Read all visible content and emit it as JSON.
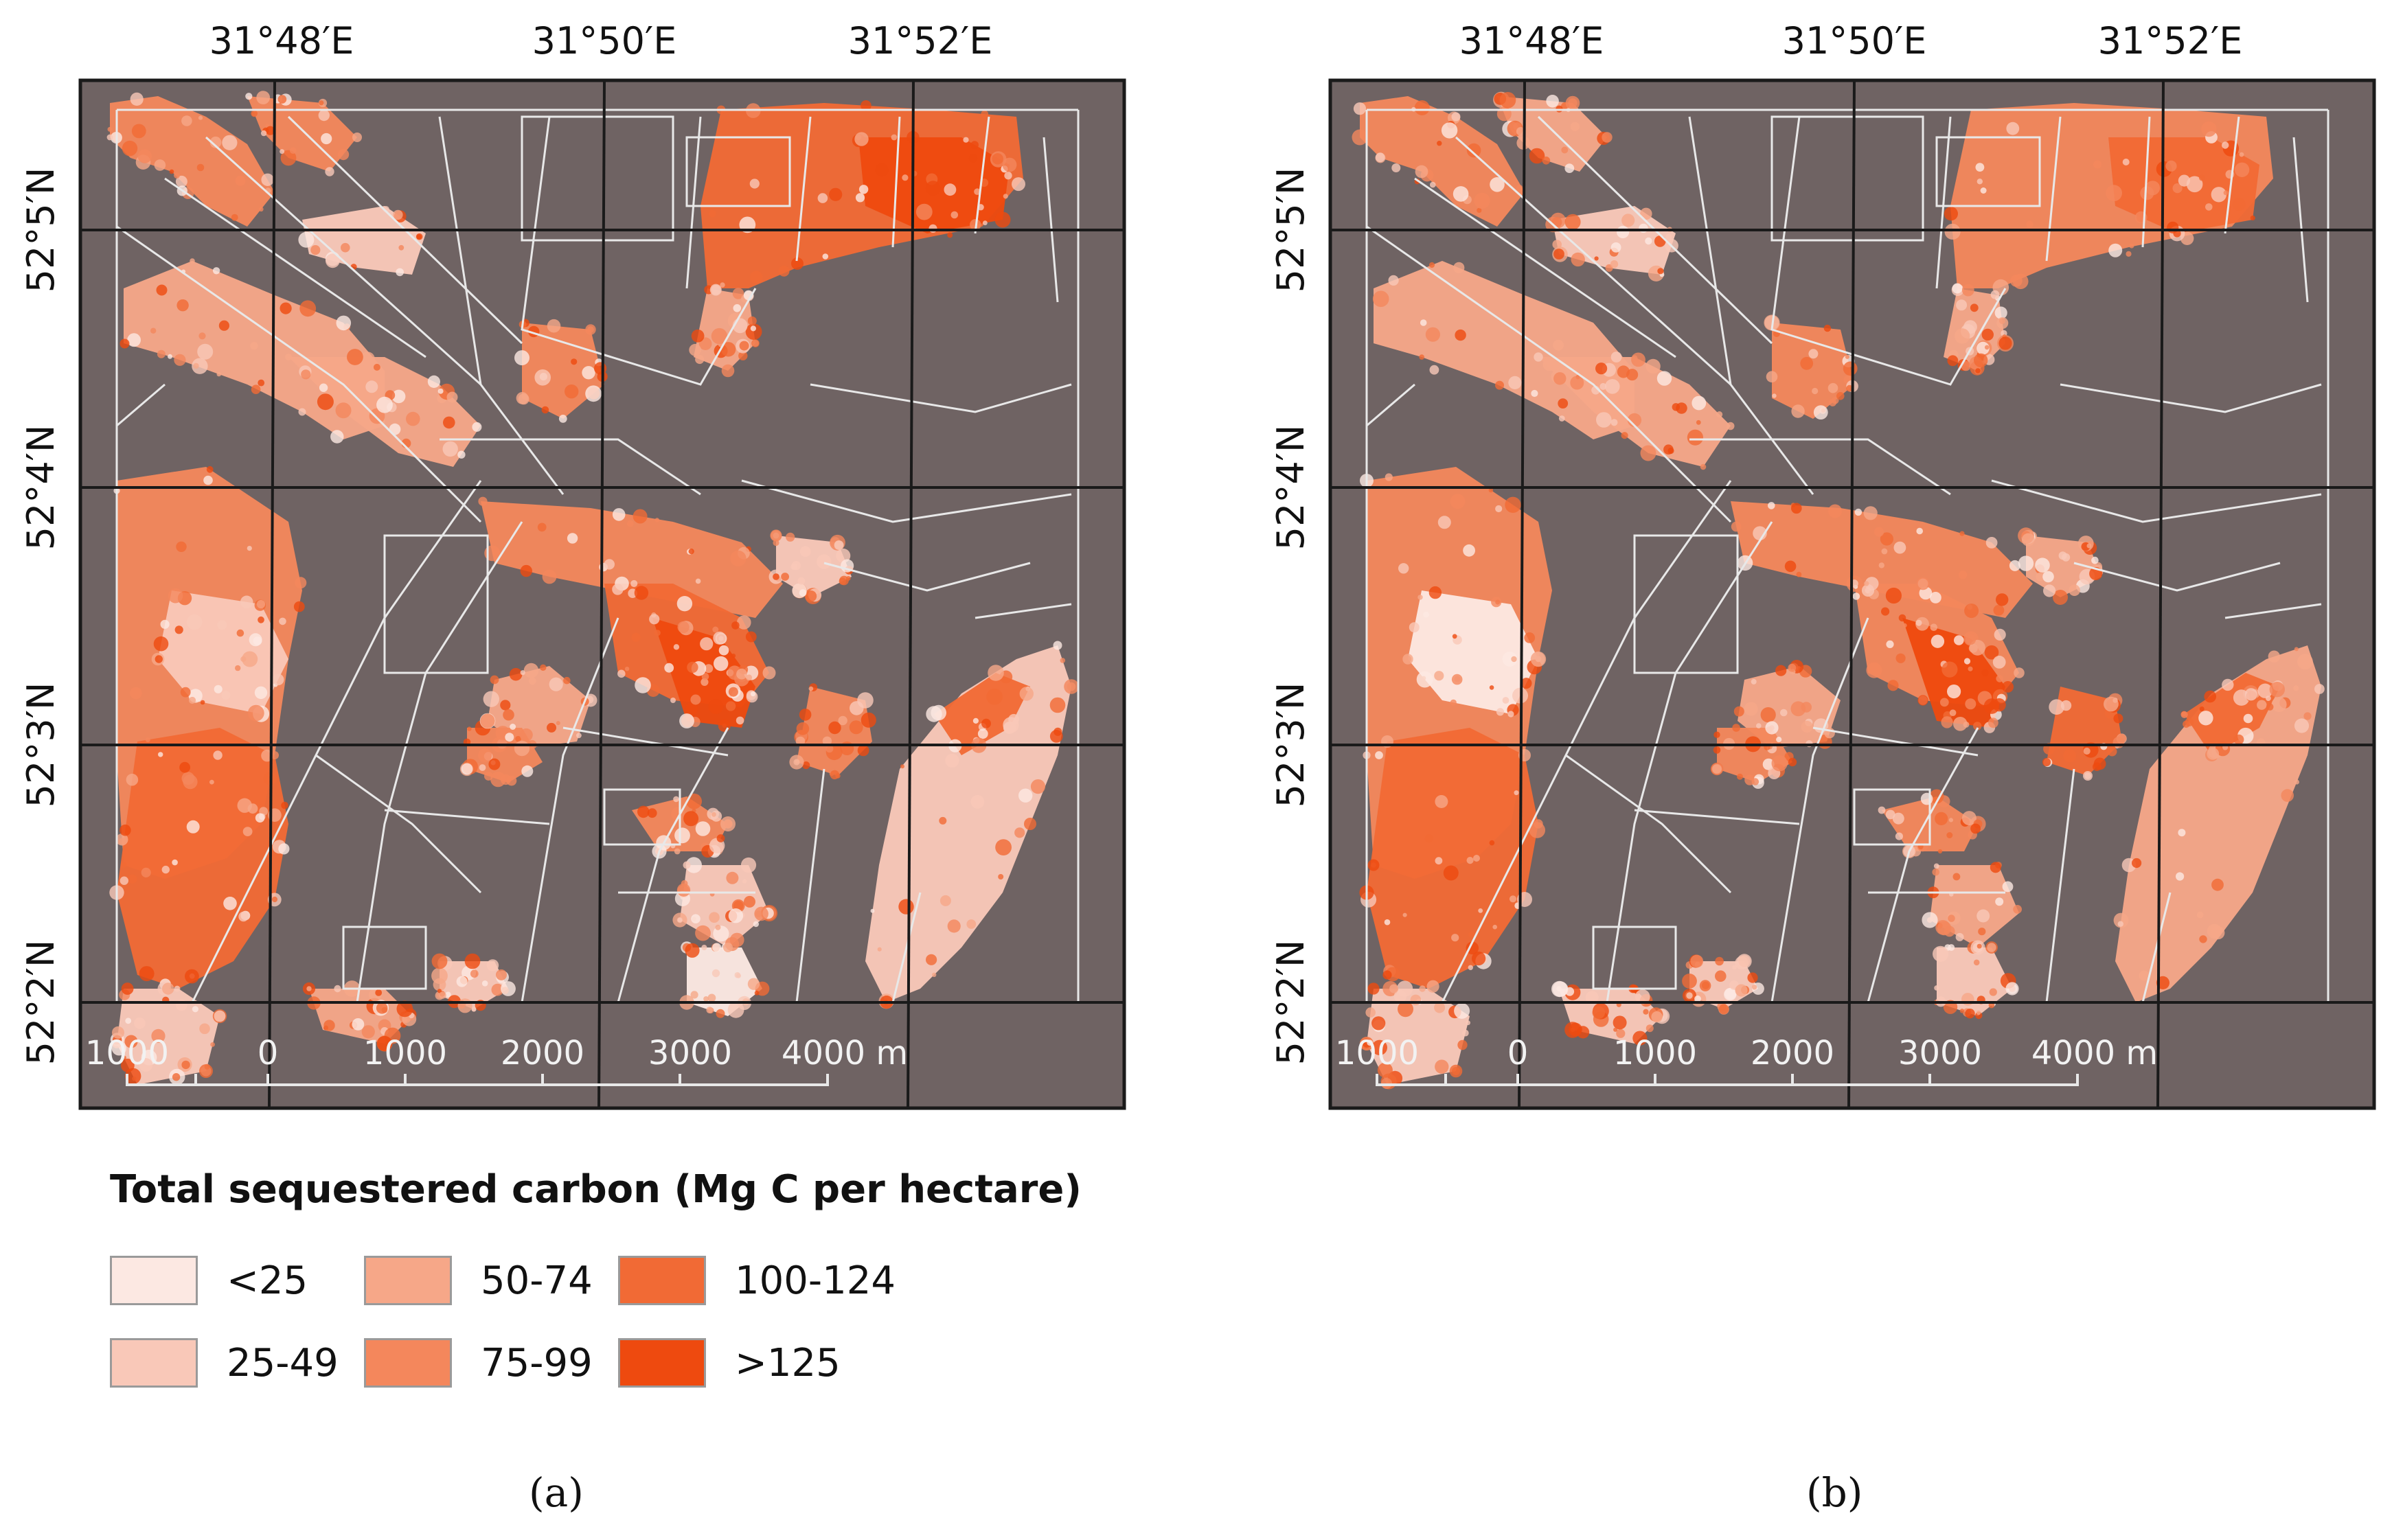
{
  "panels": [
    {
      "id": "a",
      "caption": "(a)",
      "lon_labels": [
        "31°48′E",
        "31°50′E",
        "31°52′E"
      ],
      "lat_labels": [
        "52°5′N",
        "52°4′N",
        "52°3′N",
        "52°2′N"
      ],
      "scale_labels": [
        "1000",
        "0",
        "1000",
        "2000",
        "3000",
        "4000 m"
      ]
    },
    {
      "id": "b",
      "caption": "(b)",
      "lon_labels": [
        "31°48′E",
        "31°50′E",
        "31°52′E"
      ],
      "lat_labels": [
        "52°5′N",
        "52°4′N",
        "52°3′N",
        "52°2′N"
      ],
      "scale_labels": [
        "1000",
        "0",
        "1000",
        "2000",
        "3000",
        "4000 m"
      ]
    }
  ],
  "legend": {
    "title": "Total sequestered carbon (Mg C per hectare)",
    "classes": [
      {
        "label": "<25",
        "color": "#fce8e2"
      },
      {
        "label": "25-49",
        "color": "#f9c8b8"
      },
      {
        "label": "50-74",
        "color": "#f6a788"
      },
      {
        "label": "75-99",
        "color": "#f4875c"
      },
      {
        "label": "100-124",
        "color": "#f16a35"
      },
      {
        "label": ">125",
        "color": "#ee4a0f"
      }
    ]
  },
  "colors": {
    "background_land": "#6f6363",
    "parcel_lines": "#e8e8e8",
    "graticule": "#1a1a1a"
  }
}
